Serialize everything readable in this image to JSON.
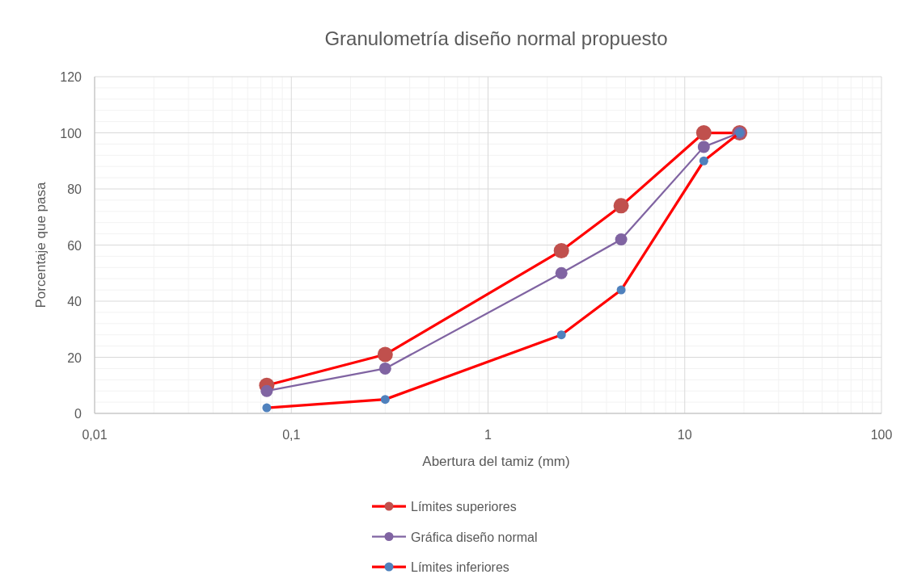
{
  "chart_data": {
    "type": "line",
    "title": "Granulometría diseño normal propuesto",
    "xlabel": "Abertura del tamiz (mm)",
    "ylabel": "Porcentaje que pasa",
    "log": "x",
    "x": [
      0.075,
      0.3,
      2.36,
      4.75,
      12.5,
      19
    ],
    "xlim": [
      0.01,
      100
    ],
    "xticks": [
      {
        "value": 0.01,
        "label": "0,01"
      },
      {
        "value": 0.1,
        "label": "0,1"
      },
      1,
      10,
      100
    ],
    "ylim": [
      0,
      120
    ],
    "yticks": [
      0,
      20,
      40,
      60,
      80,
      100,
      120
    ],
    "grid": true,
    "legend": "bottom",
    "marker": "circle",
    "line_style": "solid",
    "series": [
      {
        "name": "Límites superiores",
        "color": "#ff0000",
        "colors": [
          "#c0504d",
          "#c0504d",
          "#c0504d",
          "#c0504d",
          "#c0504d",
          "#c0504d"
        ],
        "values": [
          10,
          21,
          58,
          74,
          100,
          100
        ]
      },
      {
        "name": "Gráfica diseño normal",
        "color": "#8064a2",
        "colors": [
          "#8064a2",
          "#8064a2",
          "#8064a2",
          "#8064a2",
          "#8064a2",
          "#8064a2"
        ],
        "values": [
          8,
          16,
          50,
          62,
          95,
          100
        ]
      },
      {
        "name": "Límites inferiores",
        "color": "#ff0000",
        "colors": [
          "#4f81bd",
          "#4f81bd",
          "#4f81bd",
          "#4f81bd",
          "#4f81bd",
          "#4f81bd"
        ],
        "values": [
          2,
          5,
          28,
          44,
          90,
          100
        ]
      }
    ]
  }
}
